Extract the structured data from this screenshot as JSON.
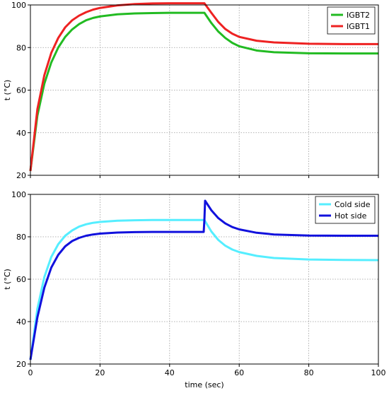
{
  "chart_data": [
    {
      "type": "line",
      "xlabel": "",
      "ylabel": "t (°C)",
      "xlim": [
        0,
        100
      ],
      "ylim": [
        20,
        100
      ],
      "xticks": [
        0,
        20,
        40,
        60,
        80,
        100
      ],
      "yticks": [
        20,
        40,
        60,
        80,
        100
      ],
      "x_tick_labels_shown": false,
      "grid": true,
      "legend": "top-right",
      "series": [
        {
          "name": "IGBT2",
          "color": "#22bb22",
          "x": [
            0,
            2,
            4,
            6,
            8,
            10,
            12,
            14,
            16,
            18,
            20,
            25,
            30,
            35,
            40,
            45,
            50,
            52,
            54,
            56,
            58,
            60,
            65,
            70,
            80,
            90,
            100
          ],
          "y": [
            22,
            48,
            63,
            73,
            80,
            85,
            88.5,
            91,
            92.8,
            93.9,
            94.6,
            95.6,
            96,
            96.2,
            96.3,
            96.3,
            96.3,
            91.5,
            87.5,
            84.5,
            82.2,
            80.6,
            78.6,
            77.8,
            77.3,
            77.2,
            77.2
          ]
        },
        {
          "name": "IGBT1",
          "color": "#ee2222",
          "x": [
            0,
            2,
            4,
            6,
            8,
            10,
            12,
            14,
            16,
            18,
            20,
            25,
            30,
            35,
            40,
            45,
            50,
            52,
            54,
            56,
            58,
            60,
            65,
            70,
            80,
            90,
            100
          ],
          "y": [
            22,
            51,
            67,
            77.5,
            84.5,
            89.5,
            92.8,
            95,
            96.6,
            97.8,
            98.6,
            99.8,
            100.4,
            100.7,
            100.8,
            100.8,
            100.8,
            96.3,
            92,
            88.7,
            86.5,
            85,
            83.2,
            82.4,
            81.8,
            81.6,
            81.6
          ]
        }
      ]
    },
    {
      "type": "line",
      "xlabel": "time (sec)",
      "ylabel": "t (°C)",
      "xlim": [
        0,
        100
      ],
      "ylim": [
        20,
        100
      ],
      "xticks": [
        0,
        20,
        40,
        60,
        80,
        100
      ],
      "yticks": [
        20,
        40,
        60,
        80,
        100
      ],
      "x_tick_labels_shown": true,
      "grid": true,
      "legend": "top-right",
      "series": [
        {
          "name": "Cold side",
          "color": "#55eeff",
          "x": [
            0,
            2,
            4,
            6,
            8,
            10,
            12,
            14,
            16,
            18,
            20,
            25,
            30,
            35,
            40,
            45,
            50,
            52,
            54,
            56,
            58,
            60,
            65,
            70,
            80,
            90,
            100
          ],
          "y": [
            22,
            46,
            61,
            70.5,
            76.5,
            80.5,
            83,
            84.8,
            85.9,
            86.6,
            87,
            87.6,
            87.8,
            87.9,
            87.9,
            87.9,
            87.9,
            82.5,
            78.5,
            75.8,
            74,
            72.8,
            71,
            70,
            69.3,
            69.1,
            69
          ]
        },
        {
          "name": "Hot side",
          "color": "#1111dd",
          "x": [
            0,
            2,
            4,
            6,
            8,
            10,
            12,
            14,
            16,
            18,
            20,
            25,
            30,
            35,
            40,
            45,
            49.8,
            50,
            50.2,
            52,
            54,
            56,
            58,
            60,
            65,
            70,
            80,
            90,
            100
          ],
          "y": [
            22,
            42,
            56,
            65.5,
            71.5,
            75.5,
            78,
            79.5,
            80.5,
            81.1,
            81.5,
            82,
            82.2,
            82.3,
            82.3,
            82.3,
            82.3,
            88,
            97,
            92.5,
            88.8,
            86.3,
            84.6,
            83.5,
            81.9,
            81.1,
            80.6,
            80.5,
            80.5
          ]
        }
      ]
    }
  ]
}
